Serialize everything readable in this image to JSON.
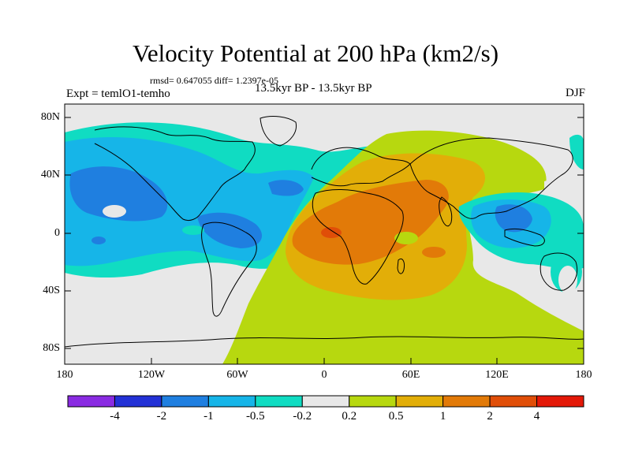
{
  "header": {
    "title": "Velocity Potential at 200 hPa (km2/s)",
    "stats": "rmsd= 0.647055 diff= 1.2397e-05",
    "experiment": "Expt = temlO1-temho",
    "period": "13.5kyr BP - 13.5kyr BP",
    "season": "DJF"
  },
  "map": {
    "projection": "cylindrical equidistant",
    "lat_range": [
      -90,
      90
    ],
    "lon_range": [
      -180,
      180
    ],
    "lat_ticks": [
      "80N",
      "40N",
      "0",
      "40S",
      "80S"
    ],
    "lon_ticks": [
      "180",
      "120W",
      "60W",
      "0",
      "60E",
      "120E",
      "180"
    ]
  },
  "colorbar": {
    "labels": [
      "-4",
      "-2",
      "-1",
      "-0.5",
      "-0.2",
      "0.2",
      "0.5",
      "1",
      "2",
      "4"
    ],
    "colors": [
      "#8a2be2",
      "#2331d6",
      "#1f7fe0",
      "#16b5e8",
      "#10dcc2",
      "#e8e8e8",
      "#b7d80f",
      "#e2ae08",
      "#e27a08",
      "#e04e08",
      "#e31808"
    ]
  }
}
